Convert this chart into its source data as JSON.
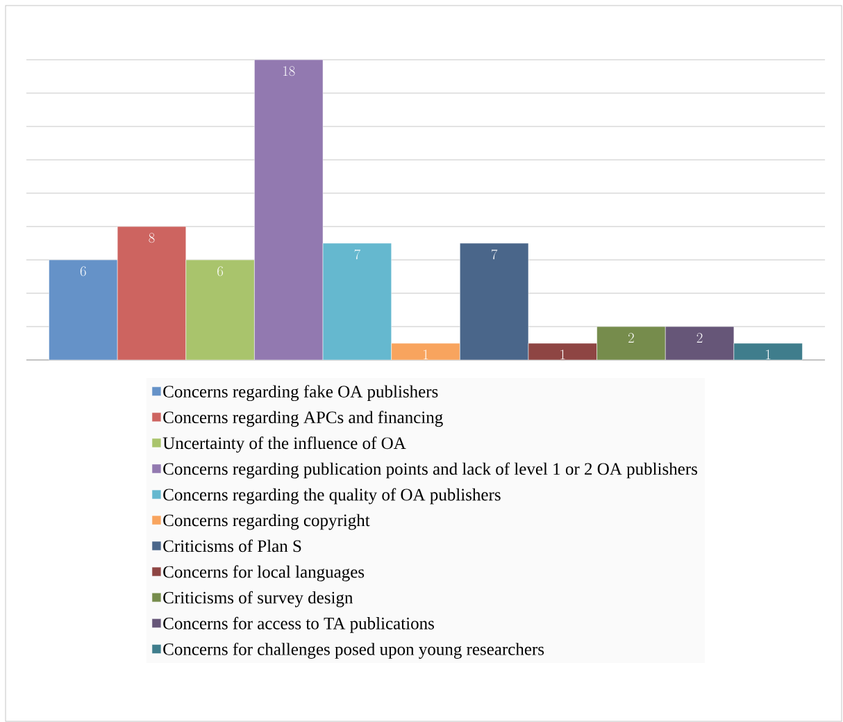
{
  "chart_data": {
    "type": "bar",
    "categories": [
      null
    ],
    "series": [
      {
        "name": "Concerns regarding fake OA publishers",
        "color": "#6592c8",
        "values": [
          6
        ]
      },
      {
        "name": "Concerns regarding APCs and financing",
        "color": "#cd6460",
        "values": [
          8
        ]
      },
      {
        "name": "Uncertainty of the influence of OA",
        "color": "#a9c46c",
        "values": [
          6
        ]
      },
      {
        "name": "Concerns regarding publication points and lack of level 1 or 2 OA publishers",
        "color": "#9279b0",
        "values": [
          18
        ]
      },
      {
        "name": "Concerns regarding the quality of OA publishers",
        "color": "#65b8cf",
        "values": [
          7
        ]
      },
      {
        "name": "Concerns regarding copyright",
        "color": "#f8a45e",
        "values": [
          1
        ]
      },
      {
        "name": "Criticisms of Plan S",
        "color": "#4a668a",
        "values": [
          7
        ]
      },
      {
        "name": "Concerns for local languages",
        "color": "#8e4543",
        "values": [
          1
        ]
      },
      {
        "name": "Criticisms of survey design",
        "color": "#768c4c",
        "values": [
          2
        ]
      },
      {
        "name": "Concerns for access to TA publications",
        "color": "#665678",
        "values": [
          2
        ]
      },
      {
        "name": "Concerns for challenges posed upon young researchers",
        "color": "#3f7d8c",
        "values": [
          1
        ]
      }
    ],
    "ylim": [
      0,
      18
    ],
    "tick_labels": false,
    "grid": "y",
    "legend": "bottom",
    "data_labels": true
  }
}
